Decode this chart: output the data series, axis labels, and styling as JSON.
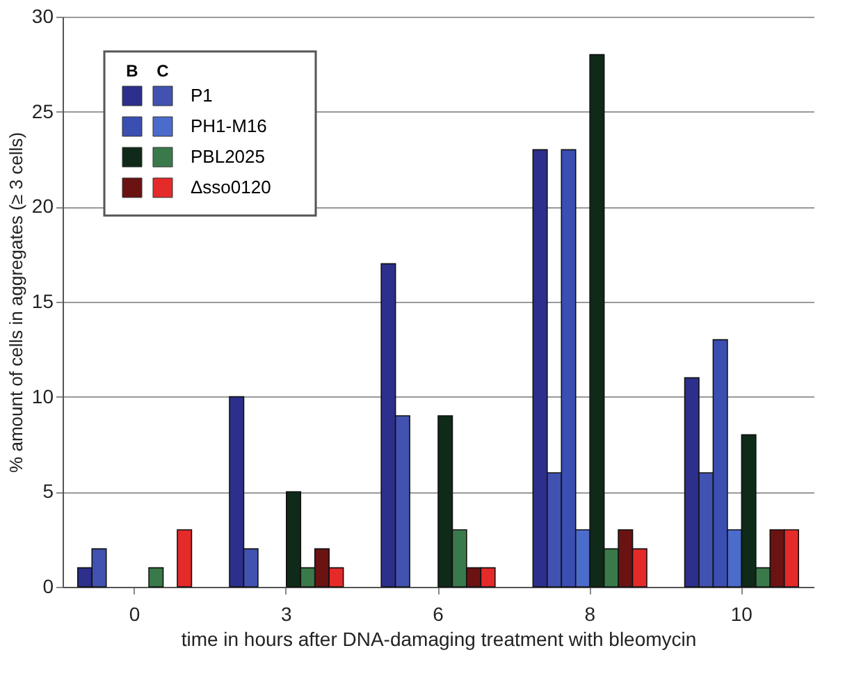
{
  "chart_data": {
    "type": "bar",
    "categories": [
      "0",
      "3",
      "6",
      "8",
      "10"
    ],
    "series": [
      {
        "color": "#2d2f8c",
        "values": [
          1,
          10,
          17,
          23,
          11
        ]
      },
      {
        "name": "P1",
        "color": "#4152b0",
        "values": [
          2,
          2,
          9,
          6,
          6
        ]
      },
      {
        "color": "#3b4eb2",
        "values": [
          null,
          null,
          null,
          23,
          13
        ]
      },
      {
        "name": "PH1-M16",
        "color": "#4c6ccc",
        "values": [
          null,
          null,
          null,
          3,
          3
        ]
      },
      {
        "color": "#0f2a18",
        "values": [
          null,
          5,
          9,
          28,
          8
        ]
      },
      {
        "name": "PBL2025",
        "color": "#3a7a4a",
        "values": [
          1,
          1,
          3,
          2,
          1
        ]
      },
      {
        "color": "#6b1212",
        "values": [
          null,
          2,
          1,
          3,
          3
        ]
      },
      {
        "name": "Δsso0120",
        "color": "#e52a2a",
        "values": [
          3,
          1,
          1,
          2,
          3
        ]
      }
    ],
    "annotations": [
      "B",
      "C"
    ],
    "xlabel": "time in hours after DNA-damaging treatment with bleomycin",
    "ylabel": "% amount of cells in aggregates   (≥ 3 cells)",
    "ylim": [
      0,
      30
    ],
    "yticks": [
      0,
      5,
      10,
      15,
      20,
      25,
      30
    ],
    "grid": "y",
    "legend": "top left"
  }
}
